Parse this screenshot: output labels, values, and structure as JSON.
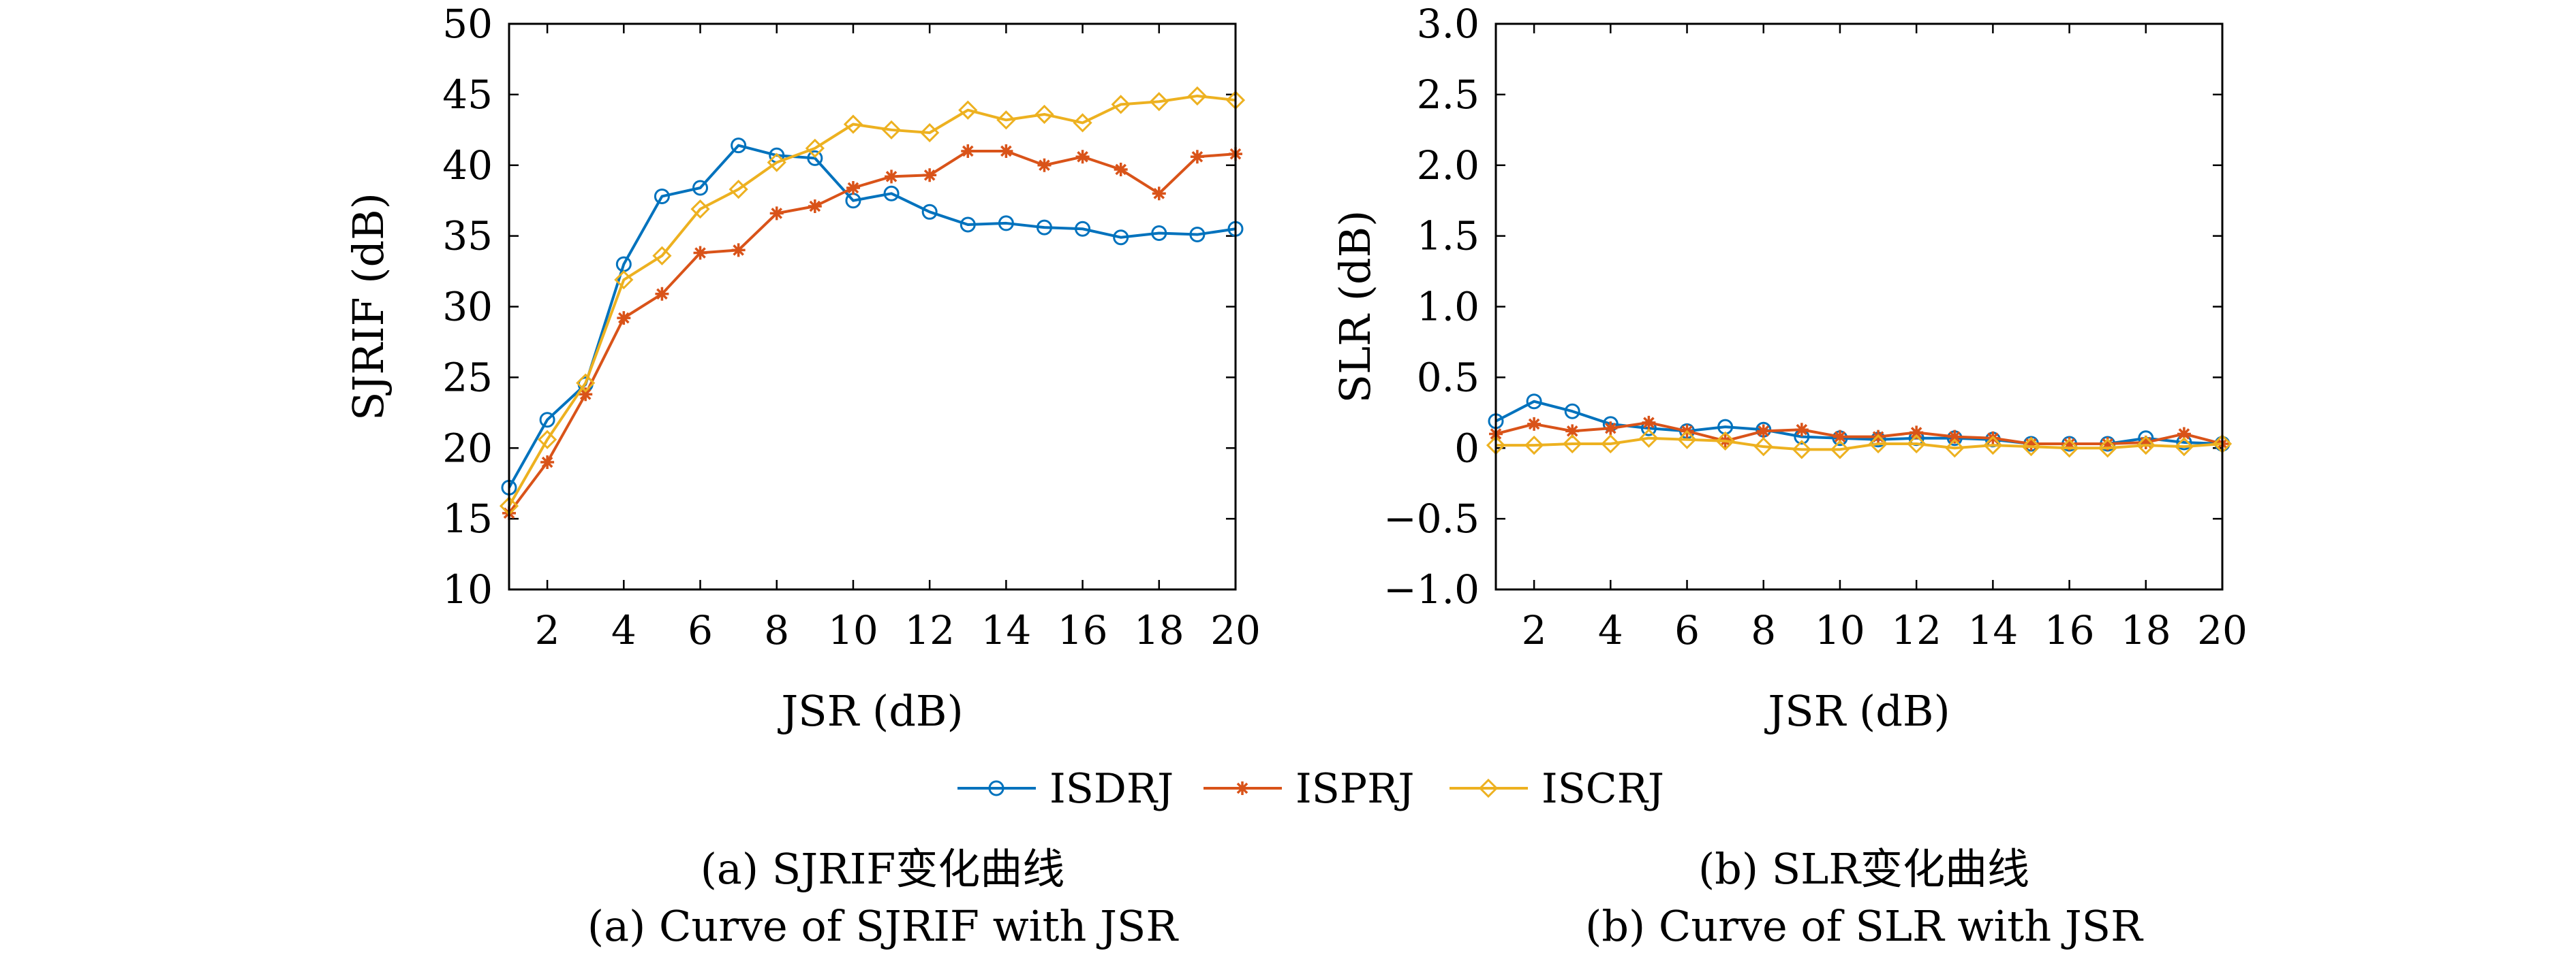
{
  "chart_data": [
    {
      "id": "a",
      "type": "line",
      "xlabel": "JSR (dB)",
      "ylabel": "SJRIF (dB)",
      "xlim": [
        1,
        20
      ],
      "ylim": [
        10,
        50
      ],
      "xticks": [
        2,
        4,
        6,
        8,
        10,
        12,
        14,
        16,
        18,
        20
      ],
      "xtick_labels": [
        "2",
        "4",
        "6",
        "8",
        "10",
        "12",
        "14",
        "16",
        "18",
        "20"
      ],
      "yticks": [
        10,
        15,
        20,
        25,
        30,
        35,
        40,
        45,
        50
      ],
      "ytick_labels": [
        "10",
        "15",
        "20",
        "25",
        "30",
        "35",
        "40",
        "45",
        "50"
      ],
      "x": [
        1,
        2,
        3,
        4,
        5,
        6,
        7,
        8,
        9,
        10,
        11,
        12,
        13,
        14,
        15,
        16,
        17,
        18,
        19,
        20
      ],
      "series": [
        {
          "name": "ISDRJ",
          "color": "#0072BD",
          "marker": "circle",
          "values": [
            17.2,
            22.0,
            24.5,
            33.0,
            37.8,
            38.4,
            41.4,
            40.7,
            40.5,
            37.5,
            38.0,
            36.7,
            35.8,
            35.9,
            35.6,
            35.5,
            34.9,
            35.2,
            35.1,
            35.5
          ]
        },
        {
          "name": "ISPRJ",
          "color": "#D95319",
          "marker": "star",
          "values": [
            15.4,
            19.0,
            23.8,
            29.2,
            30.9,
            33.8,
            34.0,
            36.6,
            37.1,
            38.4,
            39.2,
            39.3,
            41.0,
            41.0,
            40.0,
            40.6,
            39.7,
            38.0,
            40.6,
            40.8
          ]
        },
        {
          "name": "ISCRJ",
          "color": "#EDB120",
          "marker": "diamond",
          "values": [
            15.9,
            20.6,
            24.6,
            31.9,
            33.6,
            36.9,
            38.3,
            40.2,
            41.2,
            42.9,
            42.5,
            42.3,
            43.9,
            43.2,
            43.6,
            43.0,
            44.3,
            44.5,
            44.9,
            44.6
          ]
        }
      ]
    },
    {
      "id": "b",
      "type": "line",
      "xlabel": "JSR (dB)",
      "ylabel": "SLR (dB)",
      "xlim": [
        1,
        20
      ],
      "ylim": [
        -1.0,
        3.0
      ],
      "xticks": [
        2,
        4,
        6,
        8,
        10,
        12,
        14,
        16,
        18,
        20
      ],
      "xtick_labels": [
        "2",
        "4",
        "6",
        "8",
        "10",
        "12",
        "14",
        "16",
        "18",
        "20"
      ],
      "yticks": [
        -1.0,
        -0.5,
        0,
        0.5,
        1.0,
        1.5,
        2.0,
        2.5,
        3.0
      ],
      "ytick_labels": [
        "−1.0",
        "−0.5",
        "0",
        "0.5",
        "1.0",
        "1.5",
        "2.0",
        "2.5",
        "3.0"
      ],
      "x": [
        1,
        2,
        3,
        4,
        5,
        6,
        7,
        8,
        9,
        10,
        11,
        12,
        13,
        14,
        15,
        16,
        17,
        18,
        19,
        20
      ],
      "series": [
        {
          "name": "ISDRJ",
          "color": "#0072BD",
          "marker": "circle",
          "values": [
            0.19,
            0.33,
            0.26,
            0.17,
            0.14,
            0.12,
            0.15,
            0.13,
            0.08,
            0.07,
            0.06,
            0.07,
            0.07,
            0.06,
            0.03,
            0.03,
            0.03,
            0.07,
            0.04,
            0.03
          ]
        },
        {
          "name": "ISPRJ",
          "color": "#D95319",
          "marker": "star",
          "values": [
            0.1,
            0.17,
            0.12,
            0.14,
            0.18,
            0.12,
            0.05,
            0.12,
            0.13,
            0.08,
            0.08,
            0.11,
            0.08,
            0.07,
            0.03,
            0.03,
            0.03,
            0.04,
            0.1,
            0.03
          ]
        },
        {
          "name": "ISCRJ",
          "color": "#EDB120",
          "marker": "diamond",
          "values": [
            0.02,
            0.02,
            0.03,
            0.03,
            0.07,
            0.06,
            0.05,
            0.01,
            -0.01,
            -0.01,
            0.03,
            0.03,
            0.0,
            0.02,
            0.01,
            0.0,
            0.0,
            0.02,
            0.01,
            0.03
          ]
        }
      ]
    }
  ],
  "legend": {
    "entries": [
      "ISDRJ",
      "ISPRJ",
      "ISCRJ"
    ],
    "placement": "bottom-center"
  },
  "captions": {
    "a_cn": "(a) SJRIF变化曲线",
    "a_en": "(a) Curve of SJRIF with JSR",
    "b_cn": "(b) SLR变化曲线",
    "b_en": "(b) Curve of SLR with JSR"
  }
}
